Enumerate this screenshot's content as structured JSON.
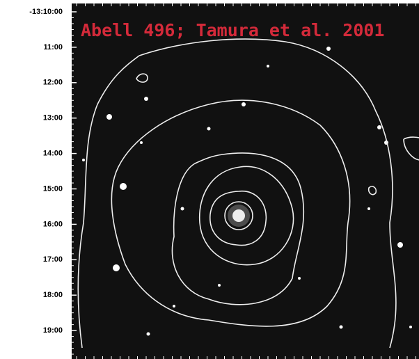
{
  "image": {
    "title": "Abell 496; Tamura et al. 2001",
    "y_labels": [
      "-13:10:00",
      "11:00",
      "12:00",
      "13:00",
      "14:00",
      "15:00",
      "16:00",
      "17:00",
      "18:00",
      "19:00"
    ]
  }
}
